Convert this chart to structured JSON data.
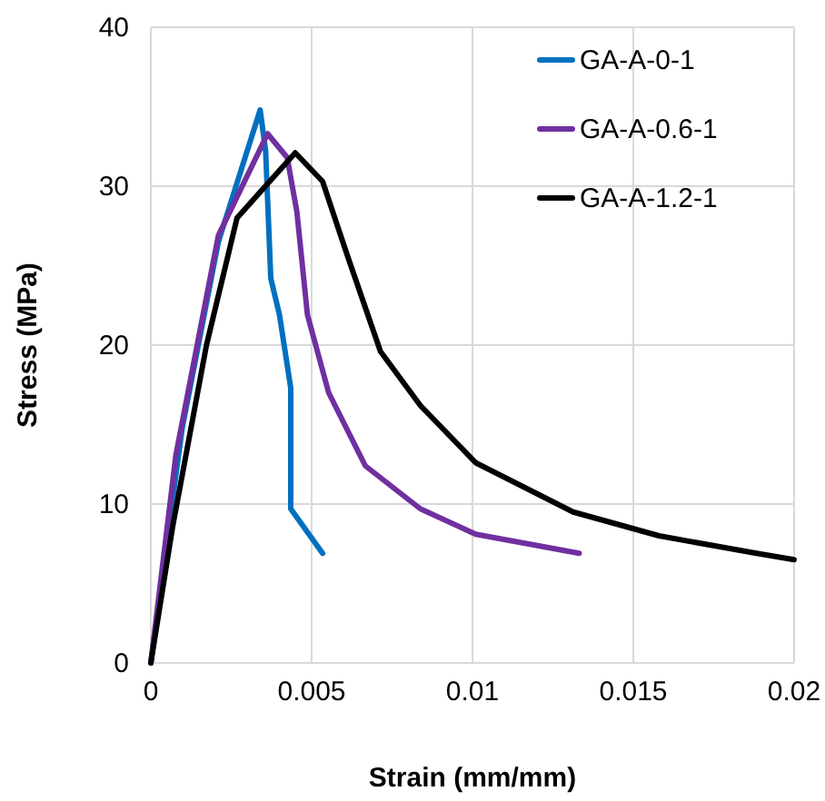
{
  "chart_data": {
    "type": "line",
    "xlabel": "Strain (mm/mm)",
    "ylabel": "Stress (MPa)",
    "xlim": [
      0,
      0.02
    ],
    "xticks": [
      0,
      0.005,
      0.01,
      0.015,
      0.02
    ],
    "ylim": [
      0,
      40
    ],
    "yticks": [
      0,
      10,
      20,
      30,
      40
    ],
    "grid": true,
    "legend": "top right",
    "marker": "none",
    "line_style": "solid",
    "series": [
      {
        "name": "GA-A-0-1",
        "color": "#0070c0",
        "x": [
          0,
          0.00097,
          0.0021,
          0.0034,
          0.00357,
          0.00373,
          0.004,
          0.00435,
          0.00435,
          0.00534
        ],
        "values": [
          0,
          14.7,
          26.5,
          34.8,
          32.2,
          24.2,
          21.9,
          17.3,
          9.7,
          6.9
        ]
      },
      {
        "name": "GA-A-0.6-1",
        "color": "#7030a0",
        "x": [
          0,
          0.00078,
          0.0021,
          0.00363,
          0.00424,
          0.00454,
          0.00487,
          0.00553,
          0.00667,
          0.00838,
          0.0101,
          0.01332
        ],
        "values": [
          0,
          13.1,
          26.9,
          33.3,
          31.8,
          28.4,
          21.9,
          17,
          12.4,
          9.7,
          8.1,
          6.9
        ]
      },
      {
        "name": "GA-A-1.2-1",
        "color": "#000000",
        "x": [
          0,
          0.00068,
          0.00173,
          0.00268,
          0.00449,
          0.00534,
          0.0061,
          0.00714,
          0.00838,
          0.0101,
          0.01313,
          0.0158,
          0.01883,
          0.02
        ],
        "values": [
          0,
          8.6,
          20,
          28,
          32.1,
          30.3,
          25.7,
          19.6,
          16.2,
          12.6,
          9.5,
          8,
          6.9,
          6.5
        ]
      }
    ]
  }
}
